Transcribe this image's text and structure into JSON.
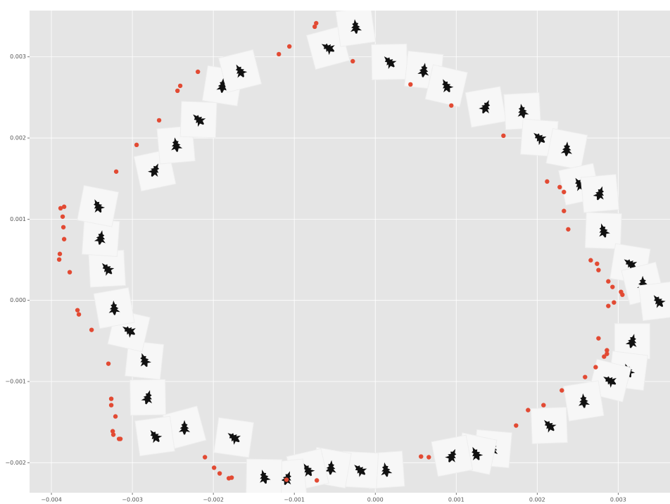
{
  "chart_data": {
    "type": "scatter",
    "xlim": [
      -0.00427,
      0.00364
    ],
    "ylim": [
      -0.00237,
      0.00357
    ],
    "xticks": [
      {
        "value": -0.004,
        "label": "−0.004"
      },
      {
        "value": -0.003,
        "label": "−0.003"
      },
      {
        "value": -0.002,
        "label": "−0.002"
      },
      {
        "value": -0.001,
        "label": "−0.001"
      },
      {
        "value": 0,
        "label": "0.000"
      },
      0.001,
      0.002,
      0.003
    ],
    "yticks": [
      {
        "value": -0.002,
        "label": "−0.002"
      },
      {
        "value": -0.001,
        "label": "−0.001"
      },
      {
        "value": 0,
        "label": "0.000"
      },
      0.001,
      0.002,
      0.003
    ],
    "grid": true,
    "series": [
      {
        "marker": "dot",
        "color": "#e24a33",
        "x": [
          -0.00073,
          -0.000748,
          -0.001061,
          -0.001191,
          -0.000278,
          0.000435,
          0.000939,
          -0.002191,
          -0.002409,
          -0.002443,
          -0.00267,
          -0.002948,
          -0.0032,
          0.001583,
          0.002122,
          0.002278,
          0.00233,
          0.00233,
          0.002383,
          0.002661,
          0.002739,
          0.002757,
          0.002878,
          0.00293,
          0.003035,
          0.003052,
          0.002948,
          0.002878,
          -0.003843,
          -0.003887,
          -0.003861,
          -0.003852,
          -0.003843,
          -0.003896,
          -0.003904,
          -0.003774,
          -0.003678,
          -0.003661,
          -0.003504,
          -0.003296,
          -0.003261,
          -0.003261,
          -0.003209,
          -0.003243,
          -0.003235,
          -0.003165,
          -0.003148,
          0.002757,
          0.002861,
          0.002861,
          0.002826,
          0.002722,
          0.002591,
          0.002304,
          0.002078,
          0.001887,
          0.001739,
          0.000661,
          0.000565,
          -0.002104,
          -0.001991,
          -0.001922,
          -0.001809,
          -0.001774,
          -0.001096,
          -0.000722
        ],
        "values": [
          0.003414,
          0.003371,
          0.003128,
          0.003033,
          0.002946,
          0.00266,
          0.0024,
          0.002816,
          0.002643,
          0.002582,
          0.002218,
          0.001915,
          0.001586,
          0.002028,
          0.001464,
          0.001395,
          0.001335,
          0.001101,
          0.000875,
          0.000494,
          0.000451,
          0.000373,
          0.000234,
          0.000165,
          0.000104,
          6.9e-05,
          -2.6e-05,
          -6.9e-05,
          0.001153,
          0.001135,
          0.001031,
          0.000901,
          0.000754,
          0.000572,
          0.000503,
          0.000347,
          -0.000121,
          -0.000173,
          -0.000364,
          -0.00078,
          -0.001213,
          -0.001291,
          -0.00143,
          -0.001612,
          -0.001655,
          -0.001707,
          -0.001707,
          -0.000468,
          -0.000615,
          -0.000659,
          -0.000693,
          -0.000823,
          -0.000945,
          -0.001109,
          -0.001291,
          -0.001352,
          -0.001542,
          -0.001932,
          -0.001924,
          -0.001932,
          -0.002062,
          -0.002132,
          -0.002192,
          -0.002184,
          -0.00221,
          -0.002218
        ]
      },
      {
        "marker": "thumbnail",
        "color": "#f7f7f7",
        "x": [
          -0.000583,
          -0.000243,
          0.000174,
          0.0006,
          0.000878,
          0.001365,
          0.001817,
          0.002026,
          0.002365,
          0.002522,
          0.002774,
          0.002817,
          0.003148,
          0.003304,
          0.003496,
          0.003174,
          0.003122,
          0.002896,
          0.002574,
          0.002148,
          0.001452,
          0.001243,
          0.000948,
          0.00013,
          -0.000191,
          -0.000548,
          -0.000835,
          -0.001087,
          -0.001374,
          -0.001748,
          -0.002357,
          -0.002722,
          -0.002809,
          -0.002852,
          -0.003043,
          -0.003226,
          -0.003313,
          -0.003391,
          -0.003426,
          -0.002722,
          -0.002461,
          -0.002183,
          -0.001887,
          -0.00167
        ],
        "values": [
          0.003111,
          0.003371,
          0.002938,
          0.002834,
          0.002643,
          0.002383,
          0.002331,
          0.002002,
          0.001863,
          0.00143,
          0.001317,
          0.000858,
          0.000451,
          0.000208,
          -9e-06,
          -0.000503,
          -0.000867,
          -0.000988,
          -0.001239,
          -0.001542,
          -0.001828,
          -0.001889,
          -0.001915,
          -0.002088,
          -0.002088,
          -0.002062,
          -0.002088,
          -0.002192,
          -0.002175,
          -0.00169,
          -0.001568,
          -0.001672,
          -0.001196,
          -0.000737,
          -0.000373,
          -9.5e-05,
          0.00039,
          0.000771,
          0.001161,
          0.001603,
          0.001915,
          0.002227,
          0.002643,
          0.002825
        ]
      }
    ]
  }
}
